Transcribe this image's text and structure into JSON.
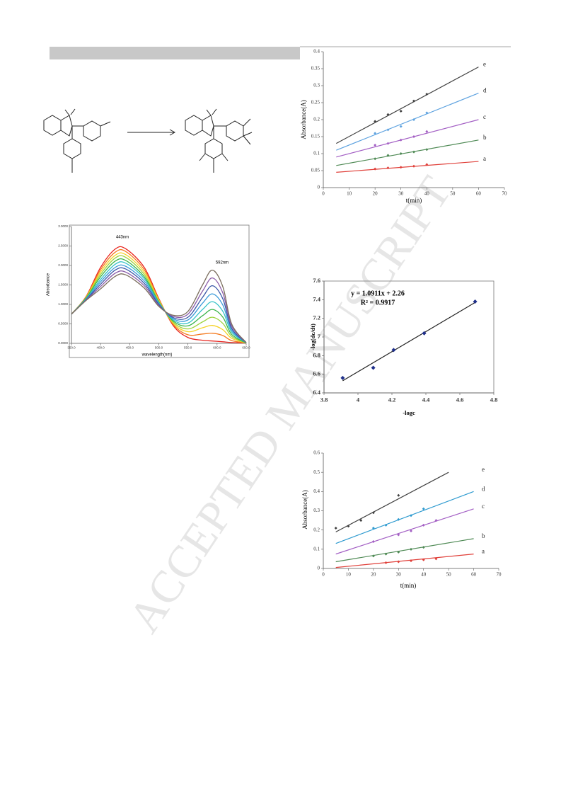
{
  "watermark": "ACCEPTED MANUSCRIPT",
  "chart_data": [
    {
      "type": "scatter",
      "x_label": "t(min)",
      "y_label": "Absorbance(A)",
      "xlim": [
        0,
        70
      ],
      "xticks": [
        0,
        10,
        20,
        30,
        40,
        50,
        60,
        70
      ],
      "ylim": [
        0,
        0.4
      ],
      "yticks": [
        0,
        0.05,
        0.1,
        0.15,
        0.2,
        0.25,
        0.3,
        0.35,
        0.4
      ],
      "series": [
        {
          "name": "a",
          "color": "#e0403a",
          "x": [
            20,
            25,
            30,
            35,
            40
          ],
          "values": [
            0.055,
            0.058,
            0.06,
            0.063,
            0.068
          ],
          "fit_x": [
            5,
            60
          ],
          "fit_values": [
            0.045,
            0.077
          ]
        },
        {
          "name": "b",
          "color": "#4f8a55",
          "x": [
            20,
            25,
            30,
            35,
            40
          ],
          "values": [
            0.085,
            0.095,
            0.1,
            0.105,
            0.112
          ],
          "fit_x": [
            5,
            60
          ],
          "fit_values": [
            0.065,
            0.14
          ]
        },
        {
          "name": "c",
          "color": "#a35fc4",
          "x": [
            20,
            25,
            30,
            35,
            40
          ],
          "values": [
            0.125,
            0.13,
            0.14,
            0.15,
            0.165
          ],
          "fit_x": [
            5,
            60
          ],
          "fit_values": [
            0.09,
            0.2
          ]
        },
        {
          "name": "d",
          "color": "#5fa3e0",
          "x": [
            20,
            25,
            30,
            35,
            40
          ],
          "values": [
            0.16,
            0.17,
            0.18,
            0.2,
            0.22
          ],
          "fit_x": [
            5,
            60
          ],
          "fit_values": [
            0.11,
            0.278
          ]
        },
        {
          "name": "e",
          "color": "#404040",
          "x": [
            20,
            25,
            30,
            35,
            40
          ],
          "values": [
            0.195,
            0.215,
            0.225,
            0.255,
            0.275
          ],
          "fit_x": [
            5,
            60
          ],
          "fit_values": [
            0.13,
            0.355
          ]
        }
      ]
    },
    {
      "type": "line",
      "x_label": "wavelength(nm)",
      "y_label": "Absorbance",
      "annotations": [
        "443nm",
        "592nm"
      ],
      "xlim": [
        350,
        650
      ],
      "xticks": [
        {
          "value": 350,
          "label": "350.0"
        },
        {
          "value": 400,
          "label": "400.0"
        },
        {
          "value": 450,
          "label": "450.0"
        },
        {
          "value": 500,
          "label": "500.0"
        },
        {
          "value": 550,
          "label": "550.0"
        },
        {
          "value": 600,
          "label": "600.0"
        },
        {
          "value": 650,
          "label": "650.0"
        }
      ],
      "ylim": [
        0,
        3
      ],
      "yticks": [
        {
          "value": 0,
          "label": "0.0000"
        },
        {
          "value": 0.5,
          "label": "0.5000"
        },
        {
          "value": 1,
          "label": "1.0000"
        },
        {
          "value": 1.5,
          "label": "1.5000"
        },
        {
          "value": 2,
          "label": "2.0000"
        },
        {
          "value": 2.5,
          "label": "2.5000"
        },
        {
          "value": 3,
          "label": "3.0000"
        }
      ],
      "x": [
        350,
        375,
        400,
        425,
        443,
        475,
        500,
        525,
        550,
        575,
        592,
        610,
        625,
        650
      ],
      "series": [
        {
          "color": "#e8251f",
          "values": [
            0.75,
            1.2,
            1.95,
            2.42,
            2.43,
            1.95,
            1.15,
            0.45,
            0.15,
            0.08,
            0.06,
            0.04,
            0.02,
            0.01
          ]
        },
        {
          "color": "#f47b20",
          "values": [
            0.75,
            1.19,
            1.89,
            2.34,
            2.36,
            1.89,
            1.13,
            0.48,
            0.22,
            0.24,
            0.26,
            0.2,
            0.07,
            0.01
          ]
        },
        {
          "color": "#f5d327",
          "values": [
            0.75,
            1.18,
            1.83,
            2.26,
            2.28,
            1.83,
            1.11,
            0.51,
            0.3,
            0.4,
            0.46,
            0.35,
            0.13,
            0.01
          ]
        },
        {
          "color": "#9bd23c",
          "values": [
            0.75,
            1.17,
            1.77,
            2.19,
            2.21,
            1.77,
            1.08,
            0.54,
            0.37,
            0.55,
            0.67,
            0.51,
            0.18,
            0.01
          ]
        },
        {
          "color": "#3cb44b",
          "values": [
            0.75,
            1.16,
            1.71,
            2.11,
            2.13,
            1.71,
            1.06,
            0.57,
            0.45,
            0.71,
            0.87,
            0.67,
            0.23,
            0.01
          ]
        },
        {
          "color": "#35c2c8",
          "values": [
            0.75,
            1.14,
            1.64,
            2.03,
            2.06,
            1.66,
            1.04,
            0.6,
            0.52,
            0.87,
            1.07,
            0.82,
            0.29,
            0.02
          ]
        },
        {
          "color": "#3a9ad9",
          "values": [
            0.75,
            1.13,
            1.58,
            1.95,
            1.98,
            1.6,
            1.02,
            0.63,
            0.6,
            1.03,
            1.27,
            0.98,
            0.34,
            0.02
          ]
        },
        {
          "color": "#3b58a8",
          "values": [
            0.75,
            1.12,
            1.52,
            1.88,
            1.91,
            1.54,
            1.0,
            0.66,
            0.67,
            1.18,
            1.48,
            1.14,
            0.39,
            0.02
          ]
        },
        {
          "color": "#8a5ca8",
          "values": [
            0.75,
            1.11,
            1.46,
            1.8,
            1.83,
            1.48,
            0.97,
            0.69,
            0.75,
            1.34,
            1.68,
            1.29,
            0.45,
            0.02
          ]
        },
        {
          "color": "#7b6e5e",
          "values": [
            0.75,
            1.1,
            1.4,
            1.72,
            1.76,
            1.42,
            0.95,
            0.72,
            0.82,
            1.5,
            1.88,
            1.45,
            0.5,
            0.02
          ]
        }
      ]
    },
    {
      "type": "scatter",
      "x_label": "-logc",
      "y_label": "-log(dc/dt)",
      "annotations": [
        "y = 1.0911x + 2.26",
        "R² = 0.9917"
      ],
      "xlim": [
        3.8,
        4.8
      ],
      "xticks": [
        3.8,
        4,
        4.2,
        4.4,
        4.6,
        4.8
      ],
      "ylim": [
        6.4,
        7.6
      ],
      "yticks": [
        6.4,
        6.6,
        6.8,
        7,
        7.2,
        7.4,
        7.6
      ],
      "color": "#1f2f8a",
      "x": [
        3.91,
        4.09,
        4.21,
        4.39,
        4.69
      ],
      "values": [
        6.56,
        6.67,
        6.86,
        7.04,
        7.38
      ],
      "fit_x": [
        3.91,
        4.69
      ],
      "fit_values": [
        6.53,
        7.37
      ]
    },
    {
      "type": "scatter",
      "x_label": "t(min)",
      "y_label": "Absorbance(A)",
      "xlim": [
        0,
        70
      ],
      "xticks": [
        0,
        10,
        20,
        30,
        40,
        50,
        60,
        70
      ],
      "ylim": [
        0,
        0.6
      ],
      "yticks": [
        0,
        0.1,
        0.2,
        0.3,
        0.4,
        0.5,
        0.6
      ],
      "series": [
        {
          "name": "a",
          "color": "#e0403a",
          "x": [
            25,
            30,
            35,
            40,
            45
          ],
          "values": [
            0.03,
            0.035,
            0.04,
            0.045,
            0.05
          ],
          "fit_x": [
            5,
            60
          ],
          "fit_values": [
            0.005,
            0.075
          ]
        },
        {
          "name": "b",
          "color": "#4f8a55",
          "x": [
            20,
            25,
            30,
            35,
            40
          ],
          "values": [
            0.065,
            0.075,
            0.085,
            0.1,
            0.11
          ],
          "fit_x": [
            5,
            60
          ],
          "fit_values": [
            0.035,
            0.155
          ]
        },
        {
          "name": "c",
          "color": "#a35fc4",
          "x": [
            20,
            30,
            35,
            40,
            45
          ],
          "values": [
            0.14,
            0.175,
            0.195,
            0.225,
            0.25
          ],
          "fit_x": [
            5,
            60
          ],
          "fit_values": [
            0.075,
            0.31
          ]
        },
        {
          "name": "d",
          "color": "#2f9bd0",
          "x": [
            20,
            25,
            30,
            35,
            40
          ],
          "values": [
            0.21,
            0.225,
            0.255,
            0.275,
            0.31
          ],
          "fit_x": [
            5,
            60
          ],
          "fit_values": [
            0.13,
            0.4
          ]
        },
        {
          "name": "e",
          "color": "#404040",
          "x": [
            5,
            10,
            15,
            20,
            30
          ],
          "values": [
            0.21,
            0.22,
            0.25,
            0.29,
            0.38
          ],
          "fit_x": [
            5,
            50
          ],
          "fit_values": [
            0.19,
            0.5
          ]
        }
      ]
    }
  ]
}
